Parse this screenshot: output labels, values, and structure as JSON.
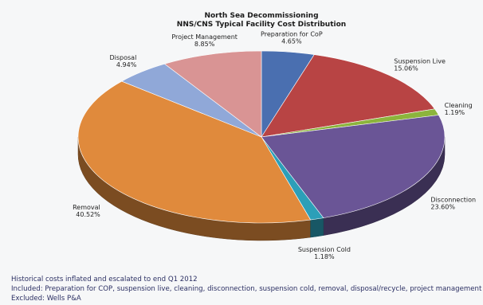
{
  "chart_data": {
    "type": "pie",
    "title": "North Sea Decommissioning",
    "subtitle": "NNS/CNS Typical Facility Cost Distribution",
    "unit": "%",
    "slices": [
      {
        "label": "Preparation for CoP",
        "value": 4.65,
        "value_text": "4.65%",
        "color": "#4a6fb0"
      },
      {
        "label": "Suspension Live",
        "value": 15.06,
        "value_text": "15.06%",
        "color": "#b84444"
      },
      {
        "label": "Cleaning",
        "value": 1.19,
        "value_text": "1.19%",
        "color": "#8cb43c"
      },
      {
        "label": "Disconnection",
        "value": 23.6,
        "value_text": "23.60%",
        "color": "#6a5596"
      },
      {
        "label": "Suspension Cold",
        "value": 1.18,
        "value_text": "1.18%",
        "color": "#2c9fb8"
      },
      {
        "label": "Removal",
        "value": 40.52,
        "value_text": "40.52%",
        "color": "#e08a3c"
      },
      {
        "label": "Disposal",
        "value": 4.94,
        "value_text": "4.94%",
        "color": "#90a8d8"
      },
      {
        "label": "Project Management",
        "value": 8.85,
        "value_text": "8.85%",
        "color": "#d99494"
      }
    ],
    "legend": "none",
    "style": "3d-tilted"
  },
  "notes": {
    "line1": "Historical costs inflated and escalated to end Q1 2012",
    "line2": "Included: Preparation for COP, suspension live, cleaning, disconnection, suspension cold, removal, disposal/recycle, project management",
    "line3": "Excluded: Wells P&A"
  }
}
